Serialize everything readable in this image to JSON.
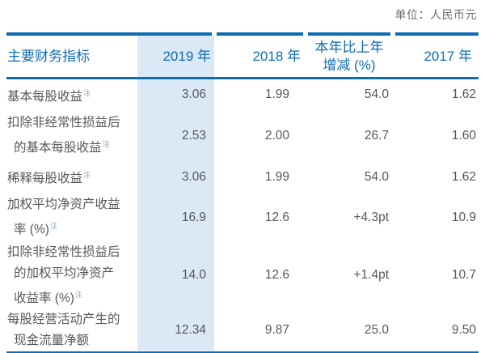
{
  "unit_label": "单位：人民币元",
  "colors": {
    "accent_blue": "#0d6cb5",
    "highlight_column_bg": "#dbe8f5",
    "body_text": "#575757",
    "unit_text": "#6e6e6e",
    "note_text": "#84a3c4"
  },
  "table": {
    "note_symbol": "注",
    "columns": [
      {
        "name": "col-header-indicators",
        "lines": [
          "主要财务指标"
        ],
        "highlight": false
      },
      {
        "name": "col-header-2019",
        "lines": [
          "2019 年"
        ],
        "highlight": true
      },
      {
        "name": "col-header-2018",
        "lines": [
          "2018 年"
        ],
        "highlight": false
      },
      {
        "name": "col-header-yoy-change",
        "lines": [
          "本年比上年",
          "增减 (%)"
        ],
        "highlight": false
      },
      {
        "name": "col-header-2017",
        "lines": [
          "2017 年"
        ],
        "highlight": false
      }
    ],
    "rows": [
      {
        "name": "row-basic-eps",
        "label_lines": [
          "基本每股收益"
        ],
        "note": true,
        "values": [
          "3.06",
          "1.99",
          "54.0",
          "1.62"
        ]
      },
      {
        "name": "row-basic-eps-ex-nonrecurring",
        "label_lines": [
          "扣除非经常性损益后",
          "的基本每股收益"
        ],
        "note": true,
        "values": [
          "2.53",
          "2.00",
          "26.7",
          "1.60"
        ]
      },
      {
        "name": "row-diluted-eps",
        "label_lines": [
          "稀释每股收益"
        ],
        "note": true,
        "values": [
          "3.06",
          "1.99",
          "54.0",
          "1.62"
        ]
      },
      {
        "name": "row-weighted-avg-roe",
        "label_lines": [
          "加权平均净资产收益",
          "率 (%)"
        ],
        "note": true,
        "values": [
          "16.9",
          "12.6",
          "+4.3pt",
          "10.9"
        ]
      },
      {
        "name": "row-weighted-avg-roe-ex-nonrecurring",
        "label_lines": [
          "扣除非经常性损益后",
          "的加权平均净资产",
          "收益率 (%)"
        ],
        "note": true,
        "values": [
          "14.0",
          "12.6",
          "+1.4pt",
          "10.7"
        ]
      },
      {
        "name": "row-net-ocf-per-share",
        "label_lines": [
          "每股经营活动产生的",
          "现金流量净额"
        ],
        "note": false,
        "values": [
          "12.34",
          "9.87",
          "25.0",
          "9.50"
        ]
      }
    ]
  }
}
